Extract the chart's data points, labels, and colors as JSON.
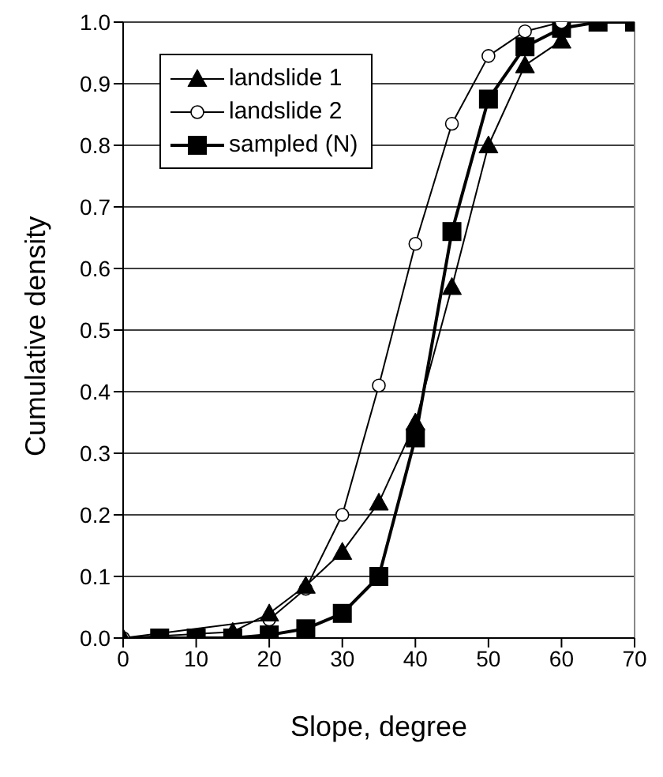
{
  "chart_data": {
    "type": "line",
    "xlabel": "Slope, degree",
    "ylabel": "Cumulative density",
    "xlim": [
      0,
      70
    ],
    "xticks": [
      0,
      10,
      20,
      30,
      40,
      50,
      60,
      70
    ],
    "ylim": [
      0,
      1
    ],
    "yticks": [
      {
        "value": 0,
        "label": "0.0"
      },
      {
        "value": 0.1,
        "label": "0.1"
      },
      {
        "value": 0.2,
        "label": "0.2"
      },
      {
        "value": 0.3,
        "label": "0.3"
      },
      {
        "value": 0.4,
        "label": "0.4"
      },
      {
        "value": 0.5,
        "label": "0.5"
      },
      {
        "value": 0.6,
        "label": "0.6"
      },
      {
        "value": 0.7,
        "label": "0.7"
      },
      {
        "value": 0.8,
        "label": "0.8"
      },
      {
        "value": 0.9,
        "label": "0.9"
      },
      {
        "value": 1,
        "label": "1.0"
      }
    ],
    "grid": "y",
    "legend": "top left",
    "series": [
      {
        "name": "landslide 1",
        "color": "#000000",
        "marker": "triangle",
        "x": [
          60,
          55,
          50,
          45,
          40,
          35,
          30,
          25,
          20,
          15,
          0
        ],
        "values": [
          0.97,
          0.93,
          0.8,
          0.57,
          0.35,
          0.22,
          0.14,
          0.085,
          0.04,
          0.01,
          0
        ]
      },
      {
        "name": "landslide 2",
        "color": "#000000",
        "marker": "circle",
        "x": [
          60,
          55,
          50,
          45,
          40,
          35,
          30,
          25,
          20,
          0
        ],
        "values": [
          1,
          0.985,
          0.945,
          0.835,
          0.64,
          0.41,
          0.2,
          0.08,
          0.03,
          0
        ]
      },
      {
        "name": "sampled (N)",
        "color": "#000000",
        "marker": "square",
        "x": [
          5,
          10,
          15,
          20,
          25,
          30,
          35,
          40,
          45,
          50,
          55,
          60,
          65,
          70
        ],
        "values": [
          0,
          0,
          0,
          0.005,
          0.015,
          0.04,
          0.1,
          0.325,
          0.66,
          0.875,
          0.96,
          0.99,
          1,
          1
        ]
      }
    ]
  }
}
